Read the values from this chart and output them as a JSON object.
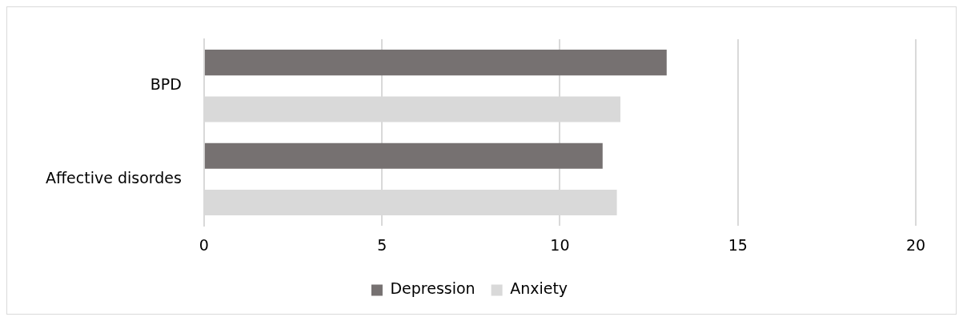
{
  "chart_data": {
    "type": "bar",
    "orientation": "horizontal",
    "categories": [
      "BPD",
      "Affective disordes"
    ],
    "series": [
      {
        "name": "Depression",
        "color": "#767171",
        "values": [
          13.0,
          11.2
        ]
      },
      {
        "name": "Anxiety",
        "color": "#d9d9d9",
        "values": [
          11.7,
          11.6
        ]
      }
    ],
    "xlim": [
      0,
      20
    ],
    "xticks": [
      0,
      5,
      10,
      15,
      20
    ],
    "grid": "x",
    "legend": "bottom"
  }
}
